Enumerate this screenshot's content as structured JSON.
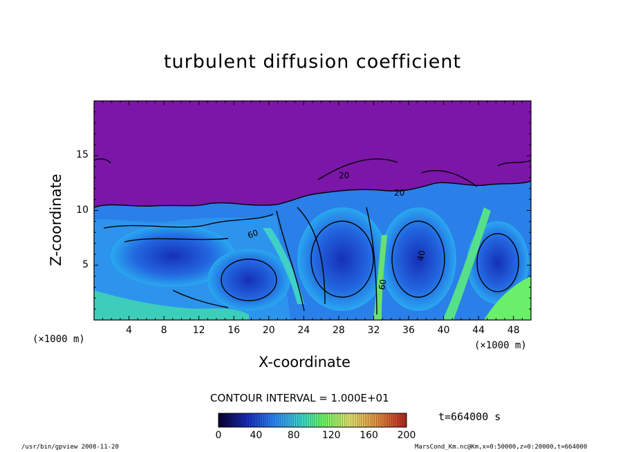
{
  "chart_data": {
    "type": "heatmap",
    "title": "turbulent diffusion coefficient",
    "xlabel": "X-coordinate",
    "ylabel": "Z-coordinate",
    "x_units": "(×1000 m)",
    "y_units": "(×1000 m)",
    "xlim": [
      0,
      50
    ],
    "ylim": [
      0,
      20
    ],
    "x_ticks": [
      "4",
      "8",
      "12",
      "16",
      "20",
      "24",
      "28",
      "32",
      "36",
      "40",
      "44",
      "48"
    ],
    "y_ticks": [
      "5",
      "10",
      "15"
    ],
    "contour_interval": "CONTOUR INTERVAL = 1.000E+01",
    "contour_labels": [
      "20",
      "40",
      "60"
    ],
    "colorbar": {
      "range": [
        0,
        200
      ],
      "ticks": [
        "0",
        "40",
        "80",
        "120",
        "160",
        "200"
      ],
      "colors": [
        "#0a0030",
        "#1a2bbf",
        "#2f8cff",
        "#3fe0d0",
        "#6aff6a",
        "#e8e870",
        "#e89040",
        "#c02020"
      ]
    },
    "background_color": "#7b16a8",
    "time": "t=664000 s"
  },
  "footer": {
    "left": "/usr/bin/gpview   2008-11-20",
    "right": "MarsCond_Km.nc@Km,x=0:50000,z=0:20000,t=664000"
  }
}
